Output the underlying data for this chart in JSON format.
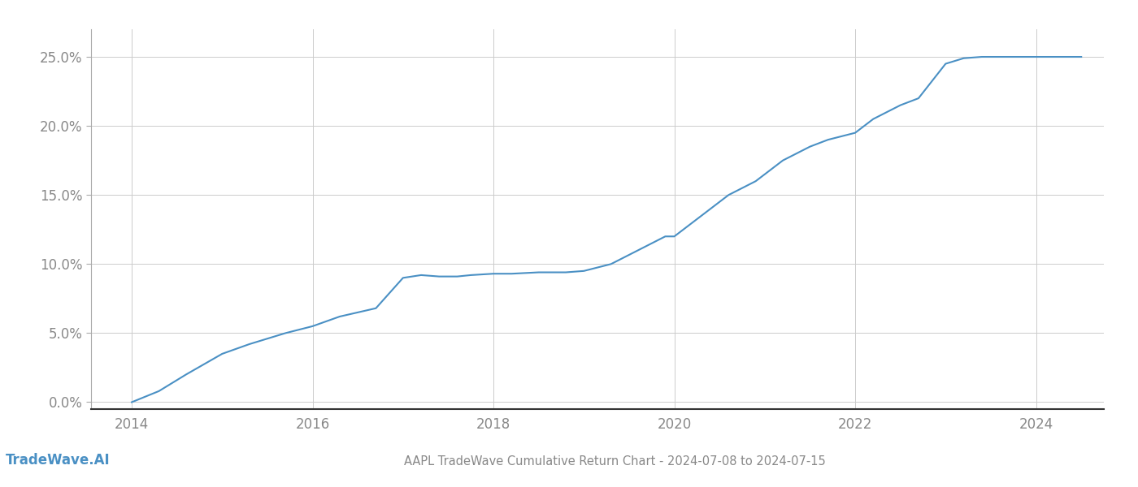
{
  "title": "AAPL TradeWave Cumulative Return Chart - 2024-07-08 to 2024-07-15",
  "watermark": "TradeWave.AI",
  "line_color": "#4a90c4",
  "background_color": "#ffffff",
  "grid_color": "#cccccc",
  "x_tick_years": [
    2014,
    2016,
    2018,
    2020,
    2022,
    2024
  ],
  "data_x": [
    2014.0,
    2014.3,
    2014.6,
    2015.0,
    2015.3,
    2015.7,
    2016.0,
    2016.3,
    2016.7,
    2017.0,
    2017.2,
    2017.4,
    2017.6,
    2017.75,
    2018.0,
    2018.2,
    2018.5,
    2018.8,
    2019.0,
    2019.3,
    2019.6,
    2019.9,
    2020.0,
    2020.3,
    2020.6,
    2020.9,
    2021.0,
    2021.2,
    2021.5,
    2021.7,
    2022.0,
    2022.2,
    2022.5,
    2022.7,
    2023.0,
    2023.2,
    2023.4,
    2023.6,
    2024.0,
    2024.5
  ],
  "data_y": [
    0.0,
    0.008,
    0.02,
    0.035,
    0.042,
    0.05,
    0.055,
    0.062,
    0.068,
    0.09,
    0.092,
    0.091,
    0.091,
    0.092,
    0.093,
    0.093,
    0.094,
    0.094,
    0.095,
    0.1,
    0.11,
    0.12,
    0.12,
    0.135,
    0.15,
    0.16,
    0.165,
    0.175,
    0.185,
    0.19,
    0.195,
    0.205,
    0.215,
    0.22,
    0.245,
    0.249,
    0.25,
    0.25,
    0.25,
    0.25
  ],
  "ylim": [
    -0.005,
    0.27
  ],
  "xlim": [
    2013.55,
    2024.75
  ],
  "yticks": [
    0.0,
    0.05,
    0.1,
    0.15,
    0.2,
    0.25
  ],
  "ytick_labels": [
    "0.0%",
    "5.0%",
    "10.0%",
    "15.0%",
    "20.0%",
    "25.0%"
  ],
  "line_width": 1.5,
  "title_fontsize": 10.5,
  "tick_fontsize": 12,
  "watermark_fontsize": 12
}
